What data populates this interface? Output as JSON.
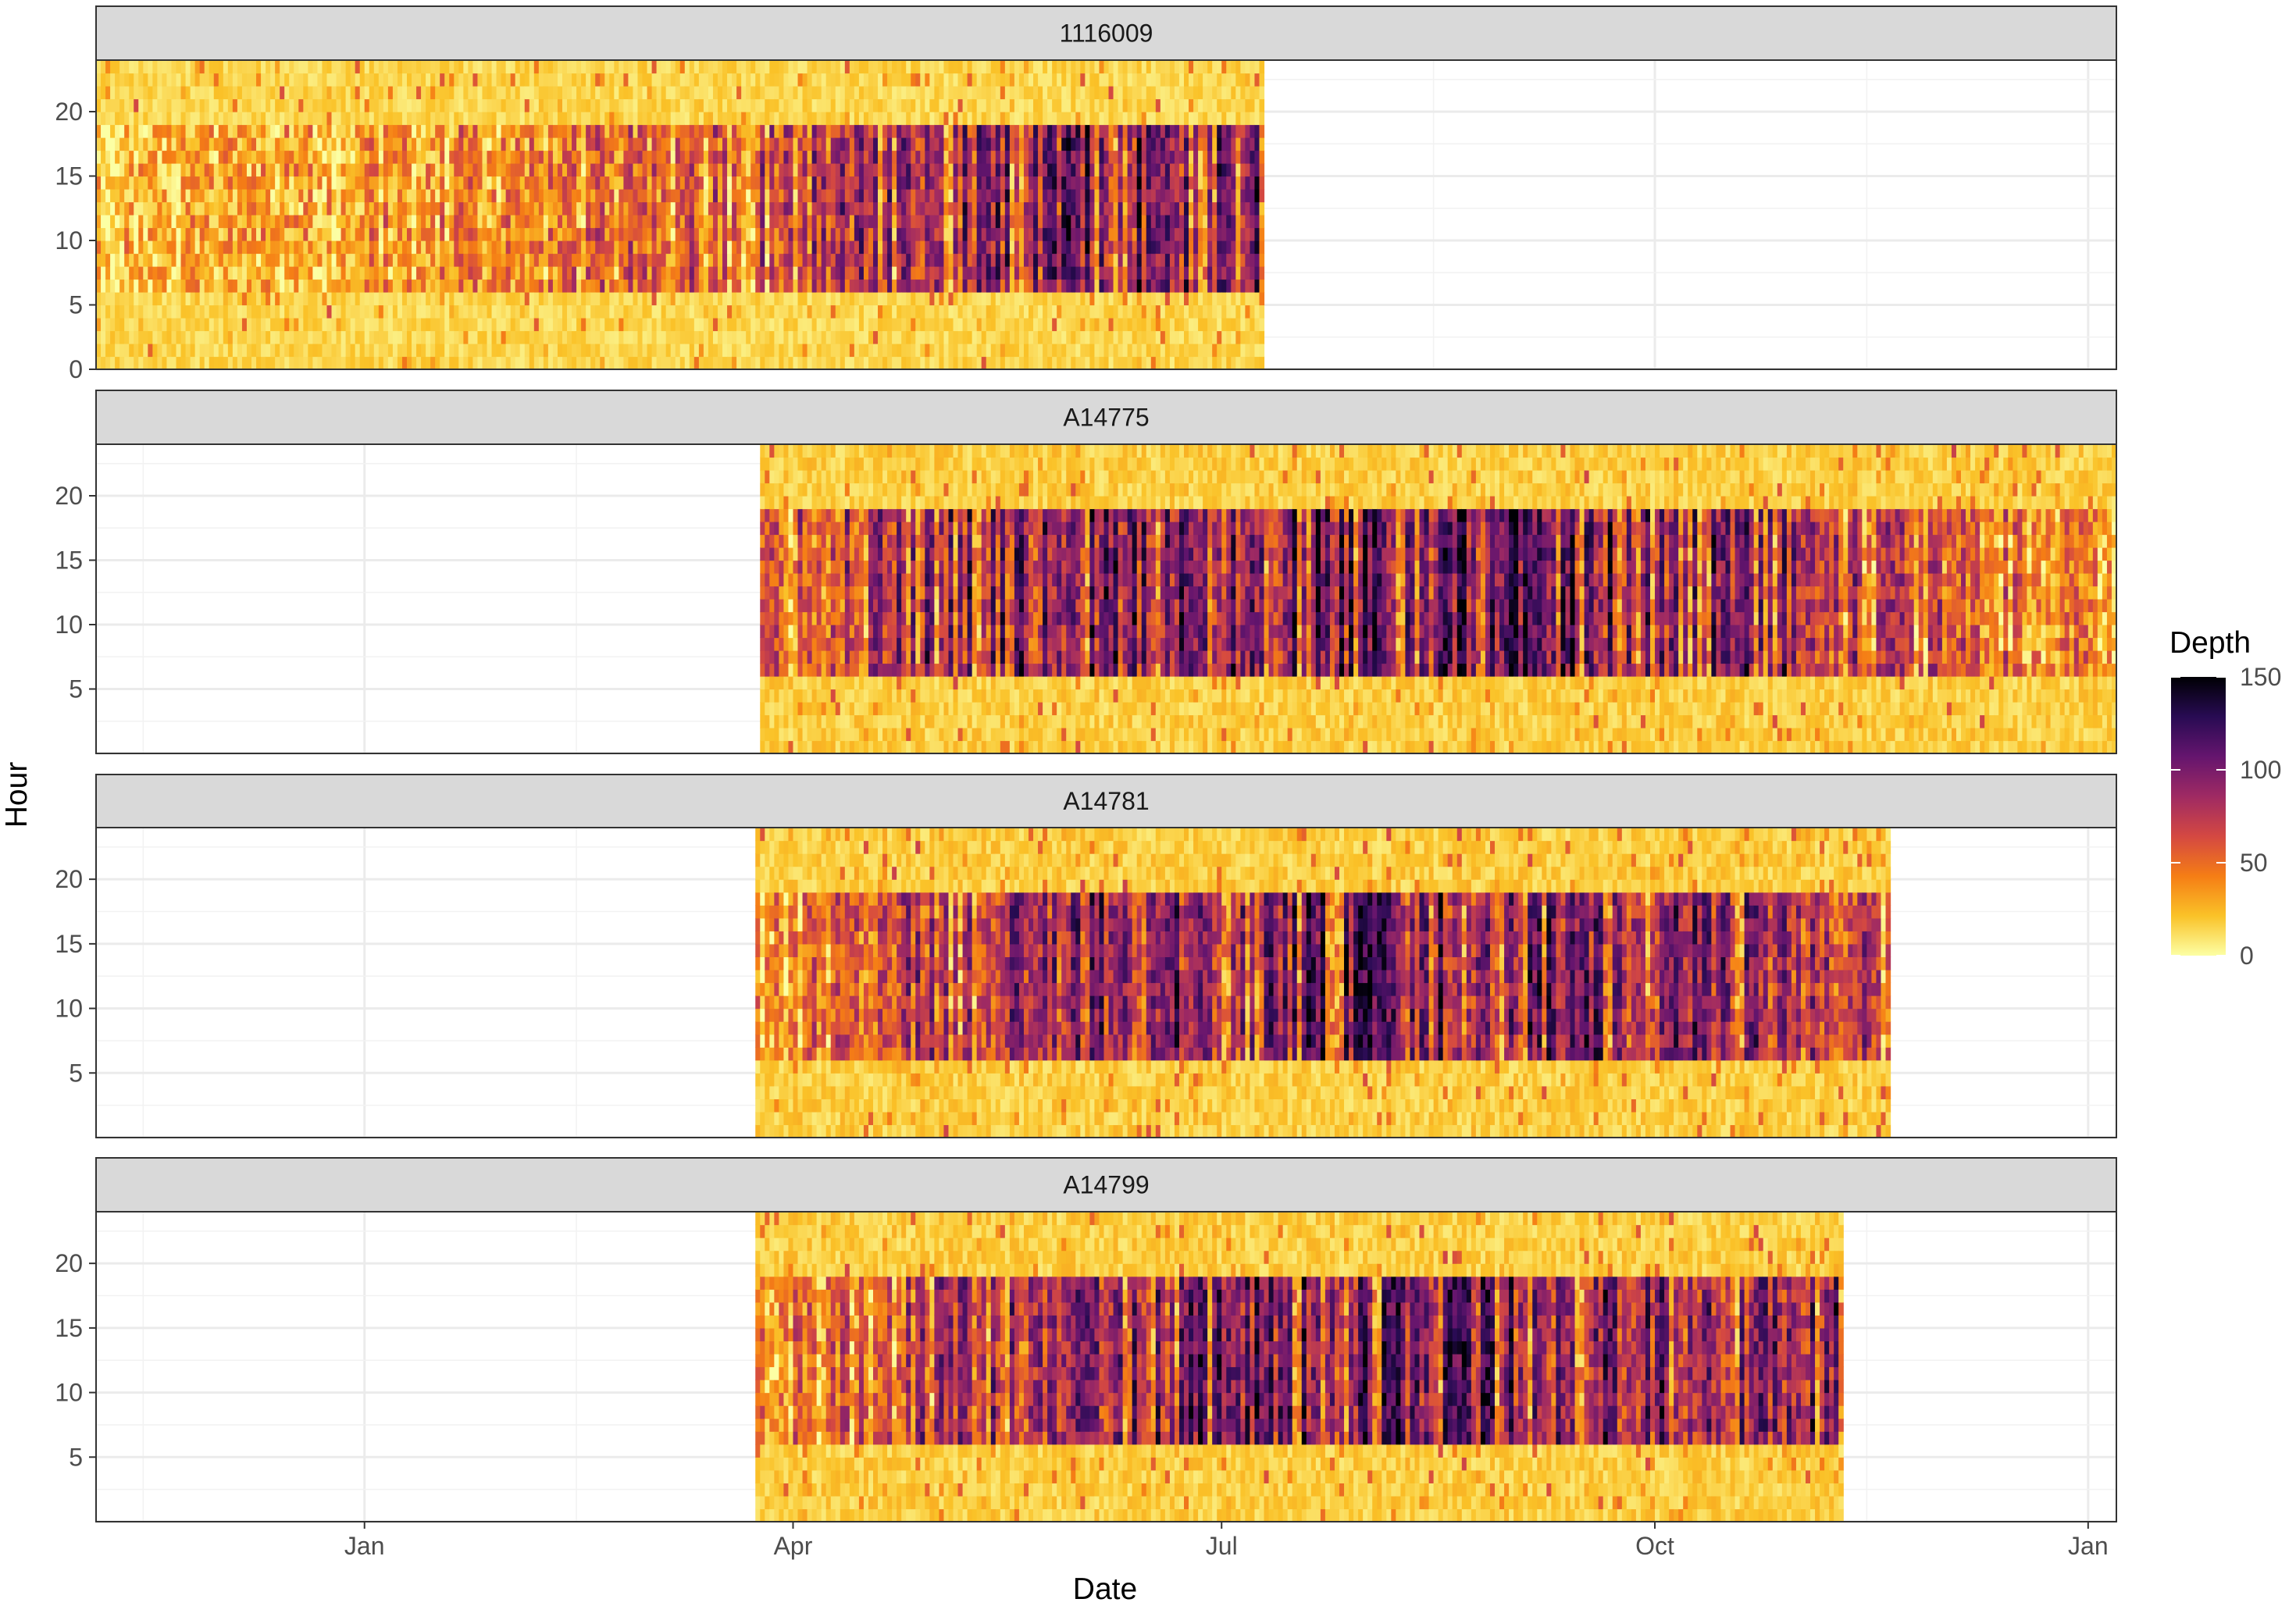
{
  "chart_data": {
    "type": "heatmap",
    "title": "",
    "xlabel": "Date",
    "ylabel": "Hour",
    "x_ticks": [
      {
        "label": "Jan",
        "date": "2020-01-01"
      },
      {
        "label": "Apr",
        "date": "2020-04-01"
      },
      {
        "label": "Jul",
        "date": "2020-07-01"
      },
      {
        "label": "Oct",
        "date": "2020-10-01"
      },
      {
        "label": "Jan",
        "date": "2021-01-01"
      }
    ],
    "xlim": [
      "2019-11-05",
      "2021-01-07"
    ],
    "ylim": [
      0,
      24
    ],
    "legend": {
      "title": "Depth",
      "min": 0,
      "max": 150,
      "ticks": [
        0,
        50,
        100,
        150
      ],
      "position": "right"
    },
    "colormap": [
      "#fcffa4",
      "#fac228",
      "#f57d15",
      "#d44842",
      "#9f2a63",
      "#65156e",
      "#280b53",
      "#000004"
    ],
    "panels": [
      {
        "name": "1116009",
        "start": "2019-11-05",
        "end": "2020-07-10",
        "y_ticks": [
          0,
          5,
          10,
          15,
          20
        ],
        "day_start_hour": 6,
        "day_end_hour": 19,
        "night_depth": 15,
        "day_depth": [
          {
            "date": "2019-11-05",
            "depth": 25
          },
          {
            "date": "2020-02-01",
            "depth": 45
          },
          {
            "date": "2020-04-01",
            "depth": 75
          },
          {
            "date": "2020-06-01",
            "depth": 105
          },
          {
            "date": "2020-07-10",
            "depth": 110
          }
        ]
      },
      {
        "name": "A14775",
        "start": "2020-03-25",
        "end": "2021-01-07",
        "y_ticks": [
          5,
          10,
          15,
          20
        ],
        "day_start_hour": 6,
        "day_end_hour": 18.5,
        "night_depth": 18,
        "day_depth": [
          {
            "date": "2020-03-25",
            "depth": 55
          },
          {
            "date": "2020-05-01",
            "depth": 95
          },
          {
            "date": "2020-08-01",
            "depth": 115
          },
          {
            "date": "2020-10-15",
            "depth": 105
          },
          {
            "date": "2020-12-01",
            "depth": 60
          },
          {
            "date": "2021-01-07",
            "depth": 40
          }
        ]
      },
      {
        "name": "A14781",
        "start": "2020-03-24",
        "end": "2020-11-20",
        "y_ticks": [
          5,
          10,
          15,
          20
        ],
        "day_start_hour": 6,
        "day_end_hour": 18.5,
        "night_depth": 18,
        "day_depth": [
          {
            "date": "2020-03-24",
            "depth": 40
          },
          {
            "date": "2020-05-01",
            "depth": 80
          },
          {
            "date": "2020-07-15",
            "depth": 110
          },
          {
            "date": "2020-10-01",
            "depth": 100
          },
          {
            "date": "2020-11-20",
            "depth": 75
          }
        ]
      },
      {
        "name": "A14799",
        "start": "2020-03-24",
        "end": "2020-11-10",
        "y_ticks": [
          5,
          10,
          15,
          20
        ],
        "day_start_hour": 6,
        "day_end_hour": 18.5,
        "night_depth": 18,
        "day_depth": [
          {
            "date": "2020-03-24",
            "depth": 40
          },
          {
            "date": "2020-05-01",
            "depth": 80
          },
          {
            "date": "2020-07-15",
            "depth": 108
          },
          {
            "date": "2020-10-01",
            "depth": 100
          },
          {
            "date": "2020-11-10",
            "depth": 95
          }
        ]
      }
    ]
  }
}
